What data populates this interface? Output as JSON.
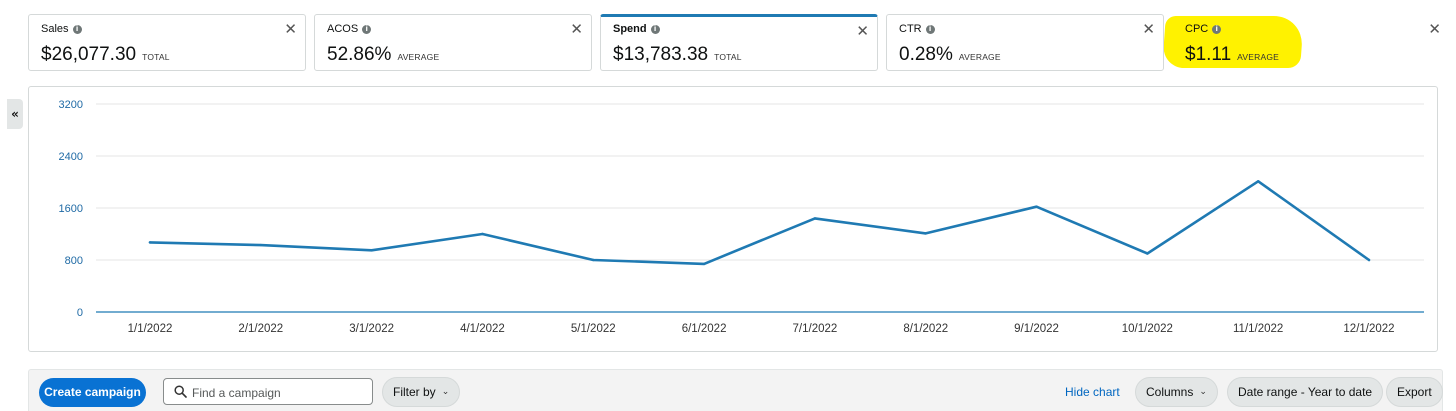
{
  "metrics": [
    {
      "name": "Sales",
      "value": "$26,077.30",
      "agg": "TOTAL",
      "active": false
    },
    {
      "name": "ACOS",
      "value": "52.86%",
      "agg": "AVERAGE",
      "active": false
    },
    {
      "name": "Spend",
      "value": "$13,783.38",
      "agg": "TOTAL",
      "active": true
    },
    {
      "name": "CTR",
      "value": "0.28%",
      "agg": "AVERAGE",
      "active": false
    },
    {
      "name": "CPC",
      "value": "$1.11",
      "agg": "AVERAGE",
      "active": false,
      "highlighted": true
    }
  ],
  "close_glyph": "✕",
  "info_glyph": "i",
  "collapse_glyph": "«",
  "chart_data": {
    "type": "line",
    "categories": [
      "1/1/2022",
      "2/1/2022",
      "3/1/2022",
      "4/1/2022",
      "5/1/2022",
      "6/1/2022",
      "7/1/2022",
      "8/1/2022",
      "9/1/2022",
      "10/1/2022",
      "11/1/2022",
      "12/1/2022"
    ],
    "series": [
      {
        "values": [
          1070,
          1030,
          950,
          1200,
          800,
          740,
          1440,
          1210,
          1620,
          900,
          2010,
          800
        ]
      }
    ],
    "yticks": [
      "0",
      "800",
      "1600",
      "2400",
      "3200"
    ],
    "ylim": [
      0,
      3200
    ],
    "grid": true,
    "colors": {
      "line": "#1f7ab3",
      "grid": "#e6e6e6",
      "tick": "#1f6aa5"
    }
  },
  "toolbar": {
    "create_label": "Create campaign",
    "search_placeholder": "Find a campaign",
    "filter_label": "Filter by",
    "hide_chart_label": "Hide chart",
    "columns_label": "Columns",
    "date_range_label": "Date range - Year to date",
    "export_label": "Export"
  },
  "colors": {
    "accent": "#0972d3",
    "highlight": "#fff200"
  }
}
